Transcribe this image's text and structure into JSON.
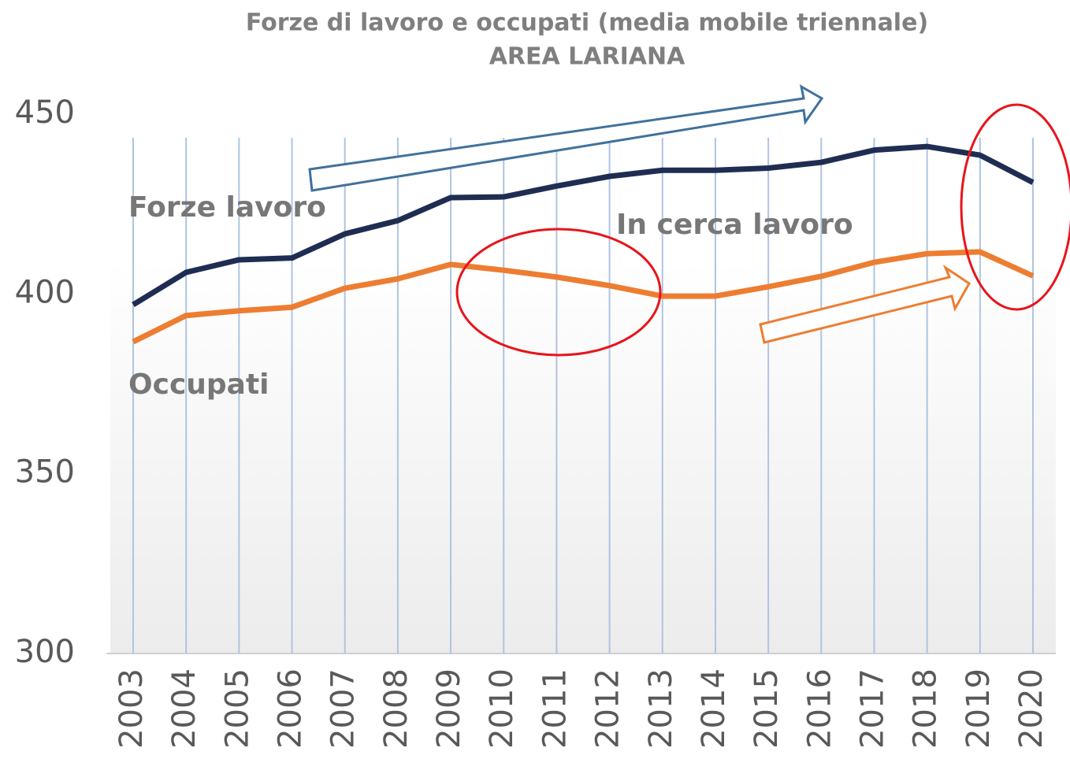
{
  "chart_data": {
    "type": "line",
    "title": "Forze di lavoro e occupati (media mobile triennale)",
    "subtitle": "AREA LARIANA",
    "categories": [
      "2003",
      "2004",
      "2005",
      "2006",
      "2007",
      "2008",
      "2009",
      "2010",
      "2011",
      "2012",
      "2013",
      "2014",
      "2015",
      "2016",
      "2017",
      "2018",
      "2019",
      "2020"
    ],
    "series": [
      {
        "name": "Forze lavoro",
        "color": "#1f2d52",
        "values": [
          397,
          406,
          409.5,
          410,
          416.7,
          420.4,
          426.8,
          427,
          430,
          432.7,
          434.4,
          434.4,
          435,
          436.6,
          440,
          441,
          438.6,
          431
        ]
      },
      {
        "name": "Occupati",
        "color": "#ed7d31",
        "values": [
          386.7,
          394,
          395.3,
          396.3,
          401.6,
          404.2,
          408.2,
          406.6,
          404.7,
          402.3,
          399.4,
          399.4,
          402,
          404.9,
          408.8,
          411.2,
          411.7,
          405
        ]
      }
    ],
    "annotations": [
      "In cerca lavoro"
    ],
    "ylim": [
      300,
      450
    ],
    "yticks": [
      300,
      350,
      400,
      450
    ],
    "grid": true
  }
}
